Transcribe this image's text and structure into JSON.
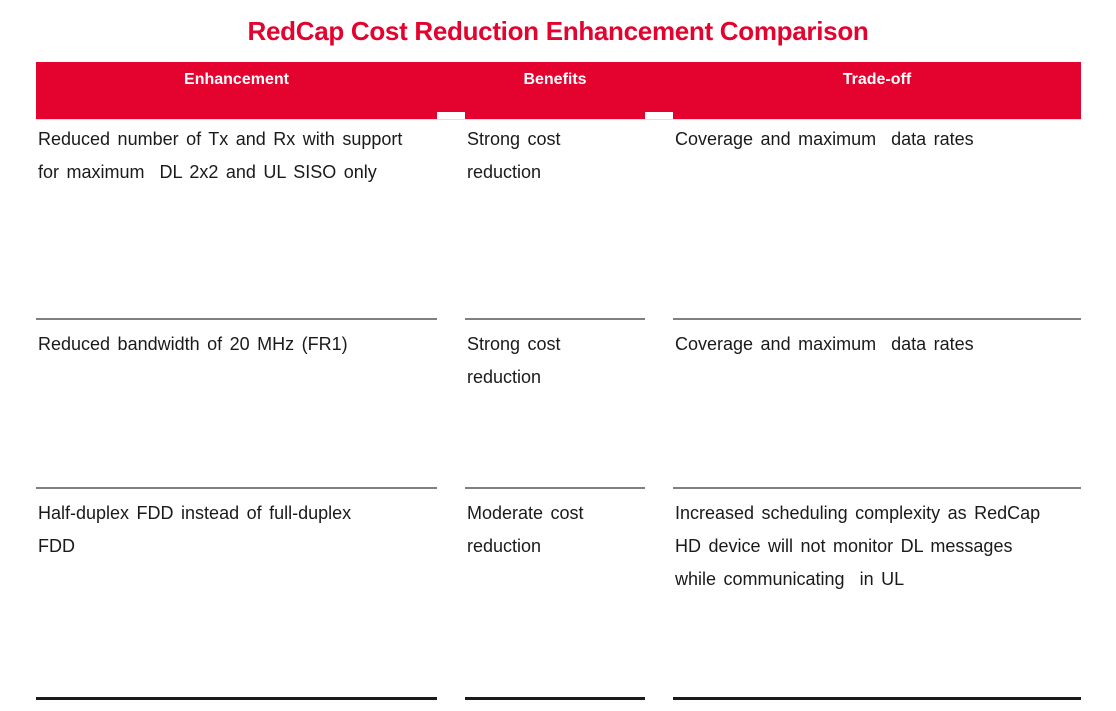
{
  "title": "RedCap Cost Reduction Enhancement Comparison",
  "colors": {
    "accent_red": "#E4032E",
    "header_text": "#FFFFFF",
    "divider_gray": "#808080",
    "bottom_rule_black": "#1A1A1A",
    "body_text": "#1A1A1A"
  },
  "table": {
    "headers": [
      "Enhancement",
      "Benefits",
      "Trade-off"
    ],
    "rows": [
      {
        "enhancement": "Reduced number of Tx and Rx with support\nfor maximum  DL 2x2 and UL SISO only",
        "benefits": "Strong cost\nreduction",
        "tradeoff": "Coverage and maximum  data rates"
      },
      {
        "enhancement": "Reduced bandwidth of 20 MHz (FR1)",
        "benefits": "Strong cost\nreduction",
        "tradeoff": "Coverage and maximum  data rates"
      },
      {
        "enhancement": "Half-duplex FDD instead of full-duplex\nFDD",
        "benefits": "Moderate cost\nreduction",
        "tradeoff": "Increased scheduling complexity as RedCap\nHD device will not monitor DL messages\nwhile communicating  in UL"
      }
    ]
  }
}
